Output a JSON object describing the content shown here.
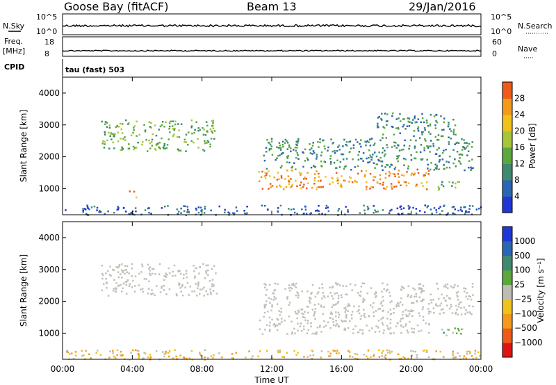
{
  "header": {
    "station": "Goose Bay (fitACF)",
    "beam": "Beam 13",
    "date": "29/Jan/2016"
  },
  "strip_labels": {
    "nsky": "N.Sky",
    "nsearch": "N.Search",
    "freq": "Freq.",
    "freq_unit": "[MHz]",
    "nave": "Nave",
    "cpid": "CPID",
    "cpid_value": "tau (fast) 503",
    "tick_10e5": "10^5",
    "tick_10e0": "10^0",
    "freq_18": "18",
    "freq_8": "8",
    "nave_60": "60",
    "nave_0": "0"
  },
  "colors": {
    "power": [
      "#1f37d6",
      "#2a66b4",
      "#3f8a6e",
      "#5ba83c",
      "#a6c53a",
      "#f0c21b",
      "#f39a1a",
      "#ee5a1a",
      "#e01313"
    ],
    "velocity": [
      "#1f37d6",
      "#2a66b4",
      "#3f8a6e",
      "#5ba83c",
      "#bdbdb5",
      "#f0c21b",
      "#f39a1a",
      "#ee5a1a",
      "#e01313"
    ],
    "ground_scatter": "#c0c0b8"
  },
  "chart_data": [
    {
      "type": "heatmap",
      "name": "power",
      "ylabel": "Slant Range [km]",
      "x_range_hours": [
        0,
        24
      ],
      "ylim": [
        180,
        4500
      ],
      "y_ticks": [
        1000,
        2000,
        3000,
        4000
      ],
      "colorbar_label": "Power [dB]",
      "colorbar_ticks": [
        "4",
        "8",
        "12",
        "16",
        "20",
        "24",
        "28"
      ],
      "regions": [
        {
          "t0": 2.2,
          "t1": 8.8,
          "r0": 2200,
          "r1": 3200,
          "level": 3
        },
        {
          "t0": 11.2,
          "t1": 21.0,
          "r0": 1000,
          "r1": 1600,
          "level": 6
        },
        {
          "t0": 11.5,
          "t1": 23.5,
          "r0": 1600,
          "r1": 2600,
          "level": 2
        },
        {
          "t0": 3.8,
          "t1": 4.2,
          "r0": 750,
          "r1": 1050,
          "level": 6
        },
        {
          "t0": 21.5,
          "t1": 23.0,
          "r0": 950,
          "r1": 1250,
          "level": 3
        },
        {
          "t0": 18.0,
          "t1": 22.5,
          "r0": 2600,
          "r1": 3400,
          "level": 2
        },
        {
          "t0": 0.0,
          "t1": 24.0,
          "r0": 190,
          "r1": 500,
          "level": 1
        }
      ]
    },
    {
      "type": "heatmap",
      "name": "velocity",
      "ylabel": "Slant Range [km]",
      "x_range_hours": [
        0,
        24
      ],
      "ylim": [
        180,
        4500
      ],
      "y_ticks": [
        1000,
        2000,
        3000,
        4000
      ],
      "xlabel": "Time UT",
      "x_ticks": [
        "00:00",
        "04:00",
        "08:00",
        "12:00",
        "16:00",
        "20:00",
        "00:00"
      ],
      "colorbar_label": "Velocity [m s⁻¹]",
      "colorbar_ticks": [
        "1000",
        "500",
        "100",
        "25",
        "−25",
        "−100",
        "−500",
        "−1000"
      ],
      "regions": [
        {
          "t0": 2.2,
          "t1": 8.8,
          "r0": 2200,
          "r1": 3200,
          "level": 4
        },
        {
          "t0": 11.2,
          "t1": 21.0,
          "r0": 1000,
          "r1": 1600,
          "level": 4
        },
        {
          "t0": 11.5,
          "t1": 23.5,
          "r0": 1600,
          "r1": 2600,
          "level": 4
        },
        {
          "t0": 21.5,
          "t1": 23.0,
          "r0": 950,
          "r1": 1250,
          "level": 3
        },
        {
          "t0": 0.0,
          "t1": 24.0,
          "r0": 190,
          "r1": 500,
          "level": 5
        }
      ]
    }
  ]
}
